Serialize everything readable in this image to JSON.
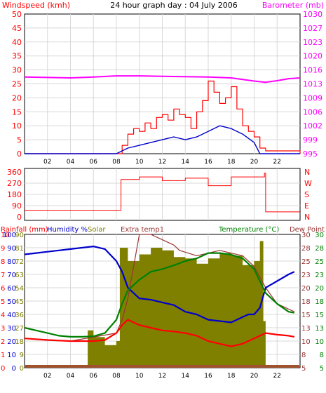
{
  "title": "24 hour graph day : 04 July 2006",
  "colors": {
    "background": "#ffffff",
    "plot_bg": "#ffffff",
    "grid": "#d8d8d8",
    "axis": "#000000",
    "windspeed": "#ff0000",
    "wind_avg": "#0000cc",
    "barometer": "#ff00ff",
    "direction": "#ff0000",
    "rainfall": "#ff0000",
    "humidity": "#0000cc",
    "solar": "#808000",
    "extra_temp": "#993333",
    "temperature": "#008000",
    "dew_point": "#ff0000",
    "rain_bar": "#a0522d"
  },
  "x_ticks": [
    "02",
    "04",
    "06",
    "08",
    "10",
    "12",
    "14",
    "16",
    "18",
    "20",
    "22"
  ],
  "panels": {
    "wind": {
      "left_label": "Windspeed (kmh)",
      "right_label": "Barometer (mb)",
      "left_ticks": [
        "0",
        "5",
        "10",
        "15",
        "20",
        "25",
        "30",
        "35",
        "40",
        "45",
        "50"
      ],
      "right_ticks": [
        "995",
        "999",
        "1002",
        "1006",
        "1009",
        "1013",
        "1016",
        "1020",
        "1023",
        "1027",
        "1030"
      ]
    },
    "direction": {
      "left_ticks": [
        "0",
        "90",
        "180",
        "270",
        "360"
      ],
      "right_ticks": [
        "N",
        "E",
        "S",
        "W",
        "N"
      ]
    },
    "temp": {
      "label_rain": "Rainfall (mm)",
      "label_humidity": "Humidity %",
      "label_solar": "Solar",
      "label_extra": "Extra temp1",
      "label_temp": "Temperature (°C)",
      "label_dew": "Dew Point",
      "left_ticks_a": [
        "0",
        "1",
        "2",
        "3",
        "4",
        "5",
        "6",
        "7",
        "8",
        "9",
        "10"
      ],
      "left_ticks_b": [
        "0",
        "10",
        "20",
        "30",
        "40",
        "50",
        "60",
        "70",
        "80",
        "90",
        "100"
      ],
      "left_ticks_c": [
        "0",
        "9",
        "18",
        "27",
        "36",
        "45",
        "54",
        "63",
        "72",
        "81",
        "90"
      ],
      "right_ticks": [
        "5",
        "8",
        "10",
        "13",
        "15",
        "18",
        "20",
        "23",
        "25",
        "28",
        "30"
      ]
    }
  },
  "chart_data": [
    {
      "type": "line",
      "title": "24 hour graph day : 04 July 2006",
      "xlabel": "",
      "ylabel": "Windspeed (kmh)",
      "y2label": "Barometer (mb)",
      "ylim": [
        0,
        50
      ],
      "y2lim": [
        995,
        1030
      ],
      "xlim": [
        0,
        24
      ],
      "series": [
        {
          "name": "Windspeed (kmh)",
          "axis": "left",
          "x": [
            0,
            8.0,
            8.5,
            9,
            9.5,
            10,
            10.5,
            11,
            11.5,
            12,
            12.5,
            13,
            13.5,
            14,
            14.5,
            15,
            15.5,
            16,
            16.5,
            17,
            17.5,
            18,
            18.5,
            19,
            19.5,
            20,
            20.5,
            21,
            24
          ],
          "y": [
            0,
            0,
            3,
            7,
            9,
            8,
            11,
            9,
            13,
            14,
            12,
            16,
            14,
            13,
            9,
            15,
            19,
            26,
            22,
            18,
            20,
            24,
            16,
            10,
            8,
            6,
            2,
            1,
            0
          ]
        },
        {
          "name": "wind average",
          "axis": "left",
          "x": [
            0,
            8.0,
            9,
            10,
            11,
            12,
            13,
            14,
            15,
            16,
            17,
            18,
            19,
            20,
            20.5,
            24
          ],
          "y": [
            0,
            0,
            2,
            3,
            4,
            5,
            6,
            5,
            6,
            8,
            10,
            9,
            7,
            4,
            0,
            0
          ]
        },
        {
          "name": "Barometer (mb)",
          "axis": "right",
          "x": [
            0,
            2,
            4,
            6,
            8,
            10,
            12,
            14,
            16,
            18,
            19,
            20,
            21,
            22,
            23,
            24
          ],
          "y": [
            1014.2,
            1014.1,
            1014.0,
            1014.2,
            1014.5,
            1014.5,
            1014.4,
            1014.3,
            1014.2,
            1014.0,
            1013.6,
            1013.2,
            1012.9,
            1013.3,
            1013.8,
            1014.0
          ]
        }
      ]
    },
    {
      "type": "line",
      "title": "",
      "ylabel": "",
      "ylim": [
        0,
        360
      ],
      "y2_tick_labels": [
        "N",
        "E",
        "S",
        "W",
        "N"
      ],
      "series": [
        {
          "name": "wind direction",
          "x": [
            0,
            8.3,
            8.4,
            10,
            12,
            14,
            16,
            18,
            20.9,
            21.0,
            24
          ],
          "y": [
            53,
            53,
            300,
            320,
            290,
            310,
            250,
            320,
            350,
            40,
            40
          ]
        }
      ]
    },
    {
      "type": "line",
      "title": "",
      "ylabel": "Rainfall (mm)",
      "y2label": "Temperature (°C)",
      "ylim": [
        0,
        100
      ],
      "y2lim": [
        5,
        30
      ],
      "series": [
        {
          "name": "Humidity %",
          "axis": "left",
          "x": [
            0,
            1,
            2,
            3,
            4,
            5,
            6,
            7,
            8,
            8.5,
            9,
            9.5,
            10,
            11,
            12,
            13,
            14,
            15,
            16,
            17,
            18,
            19,
            19.5,
            20,
            20.5,
            21,
            22,
            23,
            23.5
          ],
          "y": [
            85,
            86,
            87,
            88,
            89,
            90,
            91,
            89,
            80,
            72,
            60,
            56,
            52,
            51,
            49,
            47,
            42,
            40,
            36,
            35,
            34,
            38,
            40,
            40,
            45,
            60,
            65,
            70,
            72
          ]
        },
        {
          "name": "Temperature (°C)",
          "axis": "right",
          "x": [
            0,
            1,
            2,
            3,
            4,
            5,
            6,
            7,
            8,
            8.5,
            9,
            10,
            11,
            12,
            13,
            14,
            15,
            16,
            17,
            18,
            19,
            20,
            21,
            22,
            23,
            23.5
          ],
          "y": [
            12.5,
            12.0,
            11.5,
            11.0,
            10.8,
            10.8,
            10.9,
            11.5,
            14.0,
            17.0,
            19.5,
            21.5,
            23.0,
            23.5,
            24.2,
            25.0,
            25.5,
            26.5,
            26.5,
            26.2,
            25.5,
            23.5,
            19.0,
            17.0,
            15.5,
            15.3
          ]
        },
        {
          "name": "Dew Point",
          "axis": "right",
          "x": [
            0,
            2,
            4,
            6,
            7,
            8,
            8.5,
            9,
            10,
            11,
            12,
            13,
            14,
            15,
            16,
            17,
            18,
            19,
            20,
            21,
            22,
            23,
            23.5
          ],
          "y": [
            10.5,
            10.2,
            10.0,
            10.0,
            10.2,
            11.5,
            13.0,
            14.0,
            13.0,
            12.5,
            12.0,
            11.8,
            11.5,
            11.0,
            10.0,
            9.5,
            9.0,
            9.5,
            10.5,
            11.5,
            11.2,
            11.0,
            10.8
          ]
        },
        {
          "name": "Extra temp1",
          "axis": "right",
          "x": [
            0,
            4,
            8,
            8.5,
            9,
            9.5,
            10,
            11,
            12,
            13,
            13.5,
            15,
            17,
            19,
            20,
            21,
            22,
            23,
            23.5
          ],
          "y": [
            10.5,
            10.0,
            11.5,
            14.0,
            18.0,
            24.0,
            30.0,
            30.0,
            29.0,
            28.0,
            27.0,
            26.0,
            27.0,
            26.0,
            24.0,
            20.0,
            17.0,
            16.0,
            15.5
          ]
        },
        {
          "name": "Solar",
          "axis": "left",
          "x": [
            0,
            5.3,
            5.5,
            6,
            7,
            8,
            8.3,
            9,
            10,
            11,
            12,
            13,
            14,
            15,
            16,
            17,
            18,
            19,
            20,
            20.5,
            20.8,
            21,
            24
          ],
          "y": [
            0,
            0,
            28,
            23,
            17,
            20,
            90,
            80,
            85,
            90,
            88,
            83,
            82,
            78,
            82,
            86,
            84,
            77,
            80,
            95,
            35,
            0,
            0
          ]
        },
        {
          "name": "Rainfall (mm)",
          "axis": "left",
          "x": [
            0,
            24
          ],
          "y": [
            0,
            0
          ]
        }
      ]
    }
  ]
}
